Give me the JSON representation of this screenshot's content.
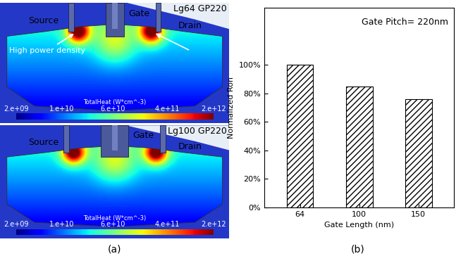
{
  "panel_a": {
    "panel_label": "(a)",
    "images": [
      {
        "title": "Lg64 GP220",
        "regions": [
          "Source",
          "Gate",
          "Drain"
        ],
        "annotation": "High power density"
      },
      {
        "title": "Lg100 GP220",
        "regions": [
          "Source",
          "Gate",
          "Drain"
        ]
      }
    ],
    "colorbar": {
      "label": "TotalHeat (W*cm^-3)",
      "range": [
        2000000000,
        2000000000000
      ],
      "ticks": [
        {
          "value": 2000000000,
          "label": "2.e+09"
        },
        {
          "value": 10000000000,
          "label": "1.e+10"
        },
        {
          "value": 60000000000,
          "label": "6.e+10"
        },
        {
          "value": 400000000000,
          "label": "4.e+11"
        },
        {
          "value": 2000000000000,
          "label": "2.e+12"
        }
      ]
    }
  },
  "chart_data": {
    "type": "bar",
    "panel_label": "(b)",
    "annotation": "Gate Pitch= 220nm",
    "categories": [
      "64",
      "100",
      "150"
    ],
    "values": [
      100,
      84.5,
      76
    ],
    "color": "#ffffff",
    "x_label": "Gate Length (nm)",
    "y_label": "Normalized Ron",
    "ylim": [
      0,
      140
    ],
    "yticks": [
      {
        "value": 0,
        "label": "0%"
      },
      {
        "value": 20,
        "label": "20%"
      },
      {
        "value": 40,
        "label": "40%"
      },
      {
        "value": 60,
        "label": "60%"
      },
      {
        "value": 80,
        "label": "80%"
      },
      {
        "value": 100,
        "label": "100%"
      }
    ]
  }
}
